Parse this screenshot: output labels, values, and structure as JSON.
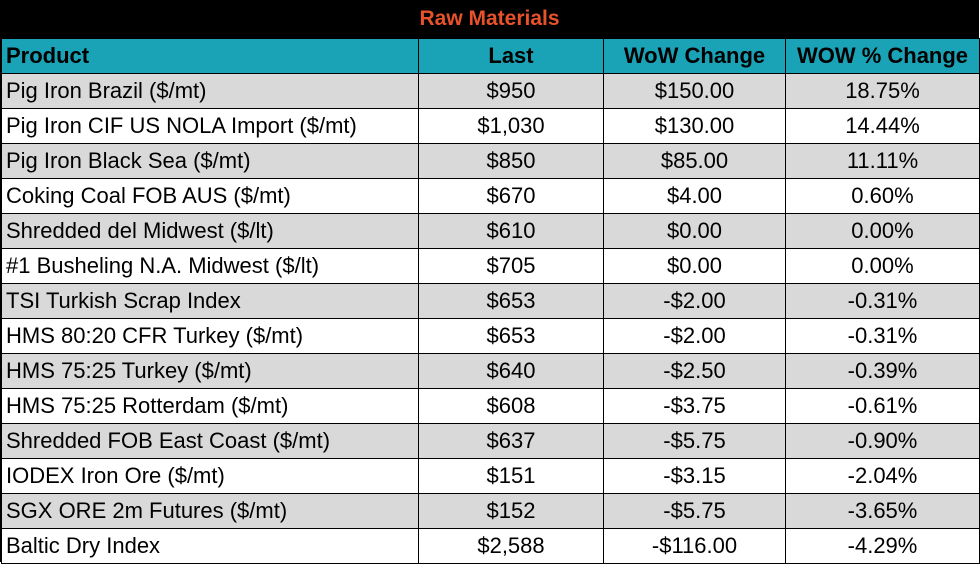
{
  "title": "Raw Materials",
  "headers": [
    "Product",
    "Last",
    "WoW Change",
    "WOW % Change"
  ],
  "rows": [
    [
      "Pig Iron Brazil ($/mt)",
      "$950",
      "$150.00",
      "18.75%"
    ],
    [
      "Pig Iron CIF US NOLA Import ($/mt)",
      "$1,030",
      "$130.00",
      "14.44%"
    ],
    [
      "Pig Iron Black Sea ($/mt)",
      "$850",
      "$85.00",
      "11.11%"
    ],
    [
      "Coking Coal FOB AUS ($/mt)",
      "$670",
      "$4.00",
      "0.60%"
    ],
    [
      "Shredded del  Midwest ($/lt)",
      "$610",
      "$0.00",
      "0.00%"
    ],
    [
      "#1 Busheling N.A. Midwest ($/lt)",
      "$705",
      "$0.00",
      "0.00%"
    ],
    [
      "TSI Turkish Scrap Index",
      "$653",
      "-$2.00",
      "-0.31%"
    ],
    [
      "HMS 80:20 CFR Turkey ($/mt)",
      "$653",
      "-$2.00",
      "-0.31%"
    ],
    [
      "HMS 75:25 Turkey ($/mt)",
      "$640",
      "-$2.50",
      "-0.39%"
    ],
    [
      "HMS 75:25 Rotterdam ($/mt)",
      "$608",
      "-$3.75",
      "-0.61%"
    ],
    [
      "Shredded FOB East Coast ($/mt)",
      "$637",
      "-$5.75",
      "-0.90%"
    ],
    [
      "IODEX  Iron Ore ($/mt)",
      "$151",
      "-$3.15",
      "-2.04%"
    ],
    [
      "SGX ORE 2m Futures ($/mt)",
      "$152",
      "-$5.75",
      "-3.65%"
    ],
    [
      "Baltic Dry Index",
      "$2,588",
      "-$116.00",
      "-4.29%"
    ]
  ],
  "colors": {
    "title_bg": "#000000",
    "title_text": "#e8522a",
    "header_bg": "#1aa3b6",
    "row_shade": "#d9d9d9",
    "row_plain": "#ffffff"
  }
}
